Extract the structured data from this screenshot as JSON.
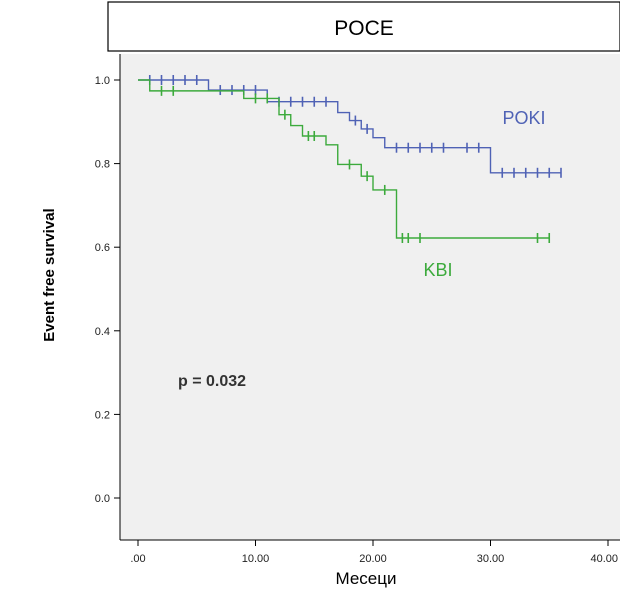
{
  "chart_data": {
    "type": "line",
    "title": "POCE",
    "xlabel": "Месеци",
    "ylabel": "Event free survival",
    "xlim": [
      0,
      40
    ],
    "ylim": [
      0,
      1.0
    ],
    "x_ticks": [
      ".00",
      "10.00",
      "20.00",
      "30.00",
      "40.00"
    ],
    "y_ticks": [
      "0.0",
      "0.2",
      "0.4",
      "0.6",
      "0.8",
      "1.0"
    ],
    "annotation": "p = 0.032",
    "grid": false,
    "series": [
      {
        "name": "POKI",
        "color": "#4f62b5",
        "steps": [
          [
            0,
            1.0
          ],
          [
            6,
            0.976
          ],
          [
            11,
            0.948
          ],
          [
            17,
            0.922
          ],
          [
            18,
            0.903
          ],
          [
            19,
            0.883
          ],
          [
            20,
            0.862
          ],
          [
            21,
            0.838
          ],
          [
            30,
            0.778
          ],
          [
            36,
            0.778
          ]
        ],
        "censored": [
          [
            1,
            1.0
          ],
          [
            2,
            1.0
          ],
          [
            3,
            1.0
          ],
          [
            4,
            1.0
          ],
          [
            5,
            1.0
          ],
          [
            7,
            0.976
          ],
          [
            8,
            0.976
          ],
          [
            9,
            0.976
          ],
          [
            10,
            0.976
          ],
          [
            12,
            0.948
          ],
          [
            13,
            0.948
          ],
          [
            14,
            0.948
          ],
          [
            15,
            0.948
          ],
          [
            16,
            0.948
          ],
          [
            18.5,
            0.903
          ],
          [
            19.5,
            0.883
          ],
          [
            22,
            0.838
          ],
          [
            23,
            0.838
          ],
          [
            24,
            0.838
          ],
          [
            25,
            0.838
          ],
          [
            26,
            0.838
          ],
          [
            28,
            0.838
          ],
          [
            29,
            0.838
          ],
          [
            31,
            0.778
          ],
          [
            32,
            0.778
          ],
          [
            33,
            0.778
          ],
          [
            34,
            0.778
          ],
          [
            35,
            0.778
          ],
          [
            36,
            0.778
          ]
        ]
      },
      {
        "name": "KBI",
        "color": "#3caa3c",
        "steps": [
          [
            0,
            1.0
          ],
          [
            1,
            0.974
          ],
          [
            9,
            0.956
          ],
          [
            12,
            0.917
          ],
          [
            13,
            0.891
          ],
          [
            14,
            0.866
          ],
          [
            16,
            0.845
          ],
          [
            17,
            0.798
          ],
          [
            19,
            0.77
          ],
          [
            20,
            0.737
          ],
          [
            22,
            0.622
          ],
          [
            35,
            0.622
          ]
        ],
        "censored": [
          [
            2,
            0.974
          ],
          [
            3,
            0.974
          ],
          [
            10,
            0.956
          ],
          [
            11,
            0.956
          ],
          [
            12.5,
            0.917
          ],
          [
            14.5,
            0.866
          ],
          [
            15,
            0.866
          ],
          [
            18,
            0.798
          ],
          [
            19.5,
            0.77
          ],
          [
            21,
            0.737
          ],
          [
            22.5,
            0.622
          ],
          [
            23,
            0.622
          ],
          [
            24,
            0.622
          ],
          [
            34,
            0.622
          ],
          [
            35,
            0.622
          ]
        ]
      }
    ]
  }
}
